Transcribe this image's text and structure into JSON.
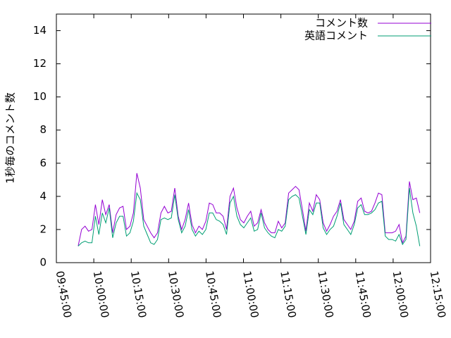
{
  "chart_data": {
    "type": "line",
    "ylabel": "1秒毎のコメント数",
    "x": [
      "09:53:44",
      "09:55:07",
      "09:56:30",
      "09:57:53",
      "09:59:16",
      "10:00:39",
      "10:02:02",
      "10:03:25",
      "10:04:48",
      "10:06:11",
      "10:07:34",
      "10:08:57",
      "10:10:20",
      "10:11:43",
      "10:13:06",
      "10:14:29",
      "10:15:52",
      "10:17:15",
      "10:18:38",
      "10:20:01",
      "10:21:24",
      "10:22:47",
      "10:24:10",
      "10:25:33",
      "10:26:56",
      "10:28:19",
      "10:29:42",
      "10:31:05",
      "10:32:28",
      "10:33:51",
      "10:35:14",
      "10:36:37",
      "10:38:00",
      "10:39:23",
      "10:40:46",
      "10:42:09",
      "10:43:32",
      "10:44:55",
      "10:46:18",
      "10:47:41",
      "10:49:04",
      "10:50:27",
      "10:51:50",
      "10:53:13",
      "10:54:36",
      "10:55:59",
      "10:57:22",
      "10:58:45",
      "11:00:08",
      "11:01:31",
      "11:02:54",
      "11:04:17",
      "11:05:40",
      "11:07:03",
      "11:08:26",
      "11:09:49",
      "11:11:12",
      "11:12:35",
      "11:13:58",
      "11:15:21",
      "11:16:44",
      "11:18:07",
      "11:19:30",
      "11:20:53",
      "11:22:16",
      "11:23:39",
      "11:25:02",
      "11:26:25",
      "11:27:48",
      "11:29:11",
      "11:30:34",
      "11:31:57",
      "11:33:20",
      "11:34:43",
      "11:36:06",
      "11:37:29",
      "11:38:52",
      "11:40:15",
      "11:41:38",
      "11:43:01",
      "11:44:24",
      "11:45:47",
      "11:47:10",
      "11:48:33",
      "11:49:56",
      "11:51:19",
      "11:52:42",
      "11:54:05",
      "11:55:28",
      "11:56:51",
      "11:58:14",
      "11:59:37",
      "12:01:00",
      "12:02:23",
      "12:03:46",
      "12:05:09",
      "12:06:32",
      "12:07:55",
      "12:09:18",
      "12:10:41"
    ],
    "series": [
      {
        "name": "コメント数",
        "color": "#9400d3",
        "values": [
          1.0,
          2.0,
          2.2,
          1.9,
          2.0,
          3.5,
          2.3,
          3.8,
          2.9,
          3.5,
          1.8,
          2.9,
          3.3,
          3.4,
          2.0,
          2.2,
          3.0,
          5.4,
          4.5,
          2.6,
          2.2,
          1.8,
          1.5,
          1.8,
          3.0,
          3.4,
          3.0,
          3.1,
          4.5,
          2.8,
          2.0,
          2.6,
          3.6,
          2.3,
          1.8,
          2.2,
          2.0,
          2.5,
          3.6,
          3.5,
          3.0,
          3.0,
          2.8,
          2.0,
          4.0,
          4.5,
          3.3,
          2.6,
          2.4,
          2.8,
          3.1,
          2.2,
          2.4,
          3.2,
          2.4,
          2.0,
          1.8,
          1.8,
          2.5,
          2.1,
          2.4,
          4.2,
          4.4,
          4.6,
          4.4,
          3.2,
          1.9,
          3.6,
          3.1,
          4.1,
          3.8,
          2.4,
          1.9,
          2.3,
          2.8,
          3.1,
          3.8,
          2.6,
          2.3,
          2.0,
          2.5,
          3.7,
          3.9,
          3.1,
          3.0,
          3.1,
          3.6,
          4.2,
          4.1,
          1.8,
          1.8,
          1.8,
          1.9,
          2.3,
          1.2,
          1.6,
          4.9,
          3.8,
          3.9,
          3.0
        ]
      },
      {
        "name": "英語コメント",
        "color": "#009e73",
        "values": [
          1.0,
          1.2,
          1.3,
          1.2,
          1.2,
          2.8,
          1.7,
          3.0,
          2.4,
          3.3,
          1.5,
          2.4,
          2.8,
          2.8,
          1.6,
          1.8,
          2.5,
          4.2,
          3.8,
          2.2,
          1.7,
          1.2,
          1.1,
          1.4,
          2.6,
          2.7,
          2.6,
          2.7,
          4.1,
          2.6,
          1.8,
          2.2,
          3.2,
          2.0,
          1.6,
          1.9,
          1.7,
          2.0,
          3.0,
          3.0,
          2.6,
          2.5,
          2.3,
          1.7,
          3.6,
          4.0,
          2.8,
          2.3,
          2.1,
          2.4,
          2.7,
          1.9,
          2.0,
          3.0,
          2.1,
          1.8,
          1.6,
          1.5,
          2.0,
          1.9,
          2.2,
          3.8,
          4.0,
          4.1,
          3.9,
          2.8,
          1.7,
          3.2,
          2.9,
          3.6,
          3.6,
          2.1,
          1.7,
          2.0,
          2.2,
          2.8,
          3.6,
          2.3,
          2.0,
          1.7,
          2.3,
          3.3,
          3.5,
          2.9,
          2.9,
          3.0,
          3.2,
          3.6,
          3.7,
          1.6,
          1.4,
          1.4,
          1.3,
          1.7,
          1.1,
          1.4,
          4.5,
          3.0,
          2.2,
          1.0
        ]
      }
    ],
    "xlim": [
      "09:45:00",
      "12:15:00"
    ],
    "xticks": [
      "09:45:00",
      "10:00:00",
      "10:15:00",
      "10:30:00",
      "10:45:00",
      "11:00:00",
      "11:15:00",
      "11:30:00",
      "11:45:00",
      "12:00:00",
      "12:15:00"
    ],
    "ylim": [
      0,
      15
    ],
    "yticks": [
      0,
      2,
      4,
      6,
      8,
      10,
      12,
      14
    ],
    "legend": "top right"
  }
}
